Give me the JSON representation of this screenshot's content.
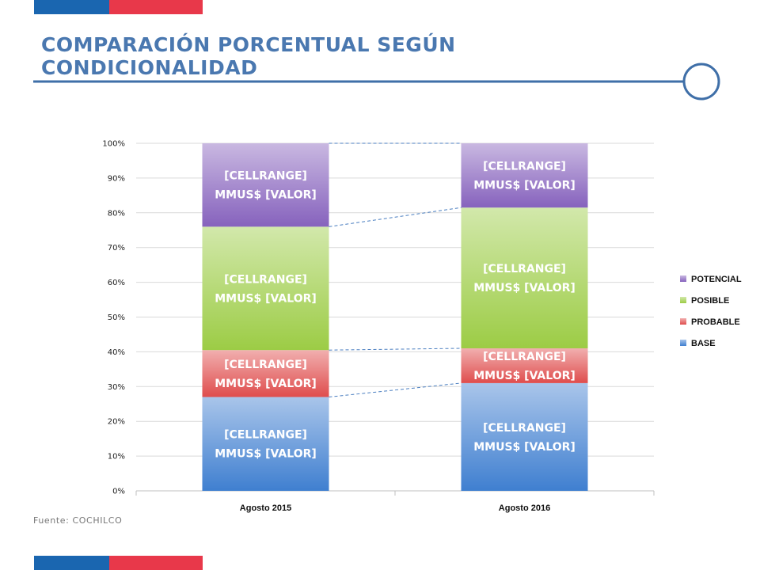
{
  "slide": {
    "title_line1": "COMPARACIÓN PORCENTUAL SEGÚN",
    "title_line2": "CONDICIONALIDAD",
    "source": "Fuente: COCHILCO",
    "accent_blue": "#1a66b0",
    "accent_red": "#e8384a",
    "title_color": "#4a78b0"
  },
  "chart_data": {
    "type": "bar",
    "stacked": true,
    "percent": true,
    "categories": [
      "Agosto 2015",
      "Agosto 2016"
    ],
    "series": [
      {
        "name": "BASE",
        "values": [
          27,
          31
        ],
        "color": "#3f7fd0",
        "labels": [
          "[CELLRANGE]",
          "MMUS$ [VALOR]"
        ]
      },
      {
        "name": "PROBABLE",
        "values": [
          13.5,
          10
        ],
        "color": "#df4d4d",
        "labels": [
          "[CELLRANGE]",
          "MMUS$ [VALOR]"
        ]
      },
      {
        "name": "POSIBLE",
        "values": [
          35.5,
          40.5
        ],
        "color": "#9ccc45",
        "labels": [
          "[CELLRANGE]",
          "MMUS$ [VALOR]"
        ]
      },
      {
        "name": "POTENCIAL",
        "values": [
          24,
          18.5
        ],
        "color": "#8662bd",
        "labels": [
          "[CELLRANGE]",
          "MMUS$ [VALOR]"
        ]
      }
    ],
    "ylim": [
      0,
      100
    ],
    "yticks": [
      "0%",
      "10%",
      "20%",
      "30%",
      "40%",
      "50%",
      "60%",
      "70%",
      "80%",
      "90%",
      "100%"
    ],
    "grid": true,
    "legend": "right",
    "legend_order": [
      "POTENCIAL",
      "POSIBLE",
      "PROBABLE",
      "BASE"
    ]
  }
}
